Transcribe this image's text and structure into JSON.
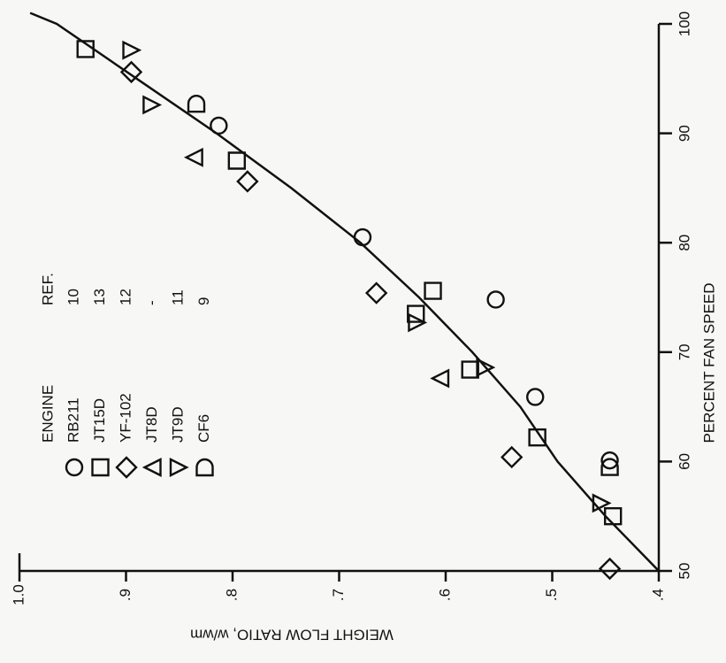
{
  "chart_data": {
    "type": "scatter",
    "xlabel": "PERCENT FAN SPEED",
    "ylabel": "WEIGHT FLOW RATIO, w/wm",
    "xlim": [
      50,
      100
    ],
    "xticks": [
      50,
      60,
      70,
      80,
      90,
      100
    ],
    "ylim": [
      0.4,
      1.0
    ],
    "yticks": [
      {
        "value": 0.4,
        "label": ".4"
      },
      {
        "value": 0.5,
        "label": ".5"
      },
      {
        "value": 0.6,
        "label": ".6"
      },
      {
        "value": 0.7,
        "label": ".7"
      },
      {
        "value": 0.8,
        "label": ".8"
      },
      {
        "value": 0.9,
        "label": ".9"
      },
      {
        "value": 1.0,
        "label": "1.0"
      }
    ],
    "legend_headers": {
      "engine": "ENGINE",
      "ref": "REF."
    },
    "series": [
      {
        "name": "RB211",
        "ref": "10",
        "marker": "circle",
        "x": [
          90.7,
          80.5,
          74.8,
          65.9,
          60.1
        ],
        "values": [
          0.813,
          0.678,
          0.553,
          0.516,
          0.446
        ]
      },
      {
        "name": "JT15D",
        "ref": "13",
        "marker": "square",
        "x": [
          97.7,
          87.5,
          75.6,
          73.5,
          68.4,
          62.2,
          55.0
        ],
        "values": [
          0.938,
          0.796,
          0.612,
          0.628,
          0.577,
          0.514,
          0.443
        ]
      },
      {
        "name": "YF-102",
        "ref": "12",
        "marker": "diamond",
        "x": [
          95.6,
          85.6,
          75.4,
          60.4,
          50.2
        ],
        "values": [
          0.895,
          0.786,
          0.665,
          0.538,
          0.446
        ]
      },
      {
        "name": "JT8D",
        "ref": "-",
        "marker": "triangle-left",
        "x": [
          87.8,
          67.6
        ],
        "values": [
          0.836,
          0.605
        ]
      },
      {
        "name": "JT9D",
        "ref": "11",
        "marker": "triangle-down",
        "x": [
          97.6,
          92.6,
          72.7,
          68.6,
          56.2
        ],
        "values": [
          0.895,
          0.876,
          0.627,
          0.563,
          0.454
        ]
      },
      {
        "name": "CF6",
        "ref": "9",
        "marker": "dome",
        "x": [
          92.7,
          59.5
        ],
        "values": [
          0.834,
          0.446
        ]
      }
    ],
    "curve": {
      "x": [
        101,
        100,
        95,
        90,
        85,
        80,
        75,
        70,
        65,
        60,
        55,
        50
      ],
      "values": [
        0.99,
        0.965,
        0.89,
        0.815,
        0.745,
        0.68,
        0.625,
        0.575,
        0.53,
        0.495,
        0.45,
        0.4
      ]
    }
  }
}
